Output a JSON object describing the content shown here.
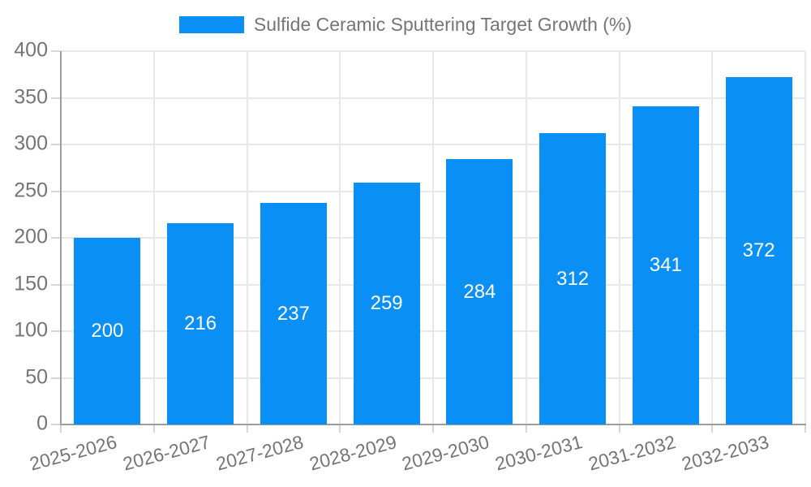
{
  "chart_data": {
    "type": "bar",
    "title": "Sulfide Ceramic Sputtering Target Growth (%)",
    "categories": [
      "2025-2026",
      "2026-2027",
      "2027-2028",
      "2028-2029",
      "2029-2030",
      "2030-2031",
      "2031-2032",
      "2032-2033"
    ],
    "values": [
      200,
      216,
      237,
      259,
      284,
      312,
      341,
      372
    ],
    "xlabel": "",
    "ylabel": "",
    "ylim": [
      0,
      400
    ],
    "yticks": [
      0,
      50,
      100,
      150,
      200,
      250,
      300,
      350,
      400
    ],
    "grid": true,
    "legend_position": "top-center",
    "bar_label_position": "inside-center",
    "xtick_label_rotation_deg": -15,
    "colors": {
      "bar": "#0a90f5",
      "bar_value_text": "#ffffff",
      "axis": "#9e9e9e",
      "gridline": "#e8e8e8",
      "tick": "#d6d6d6",
      "tick_label_text": "#757575",
      "legend_text": "#757575",
      "background": "#ffffff"
    }
  }
}
